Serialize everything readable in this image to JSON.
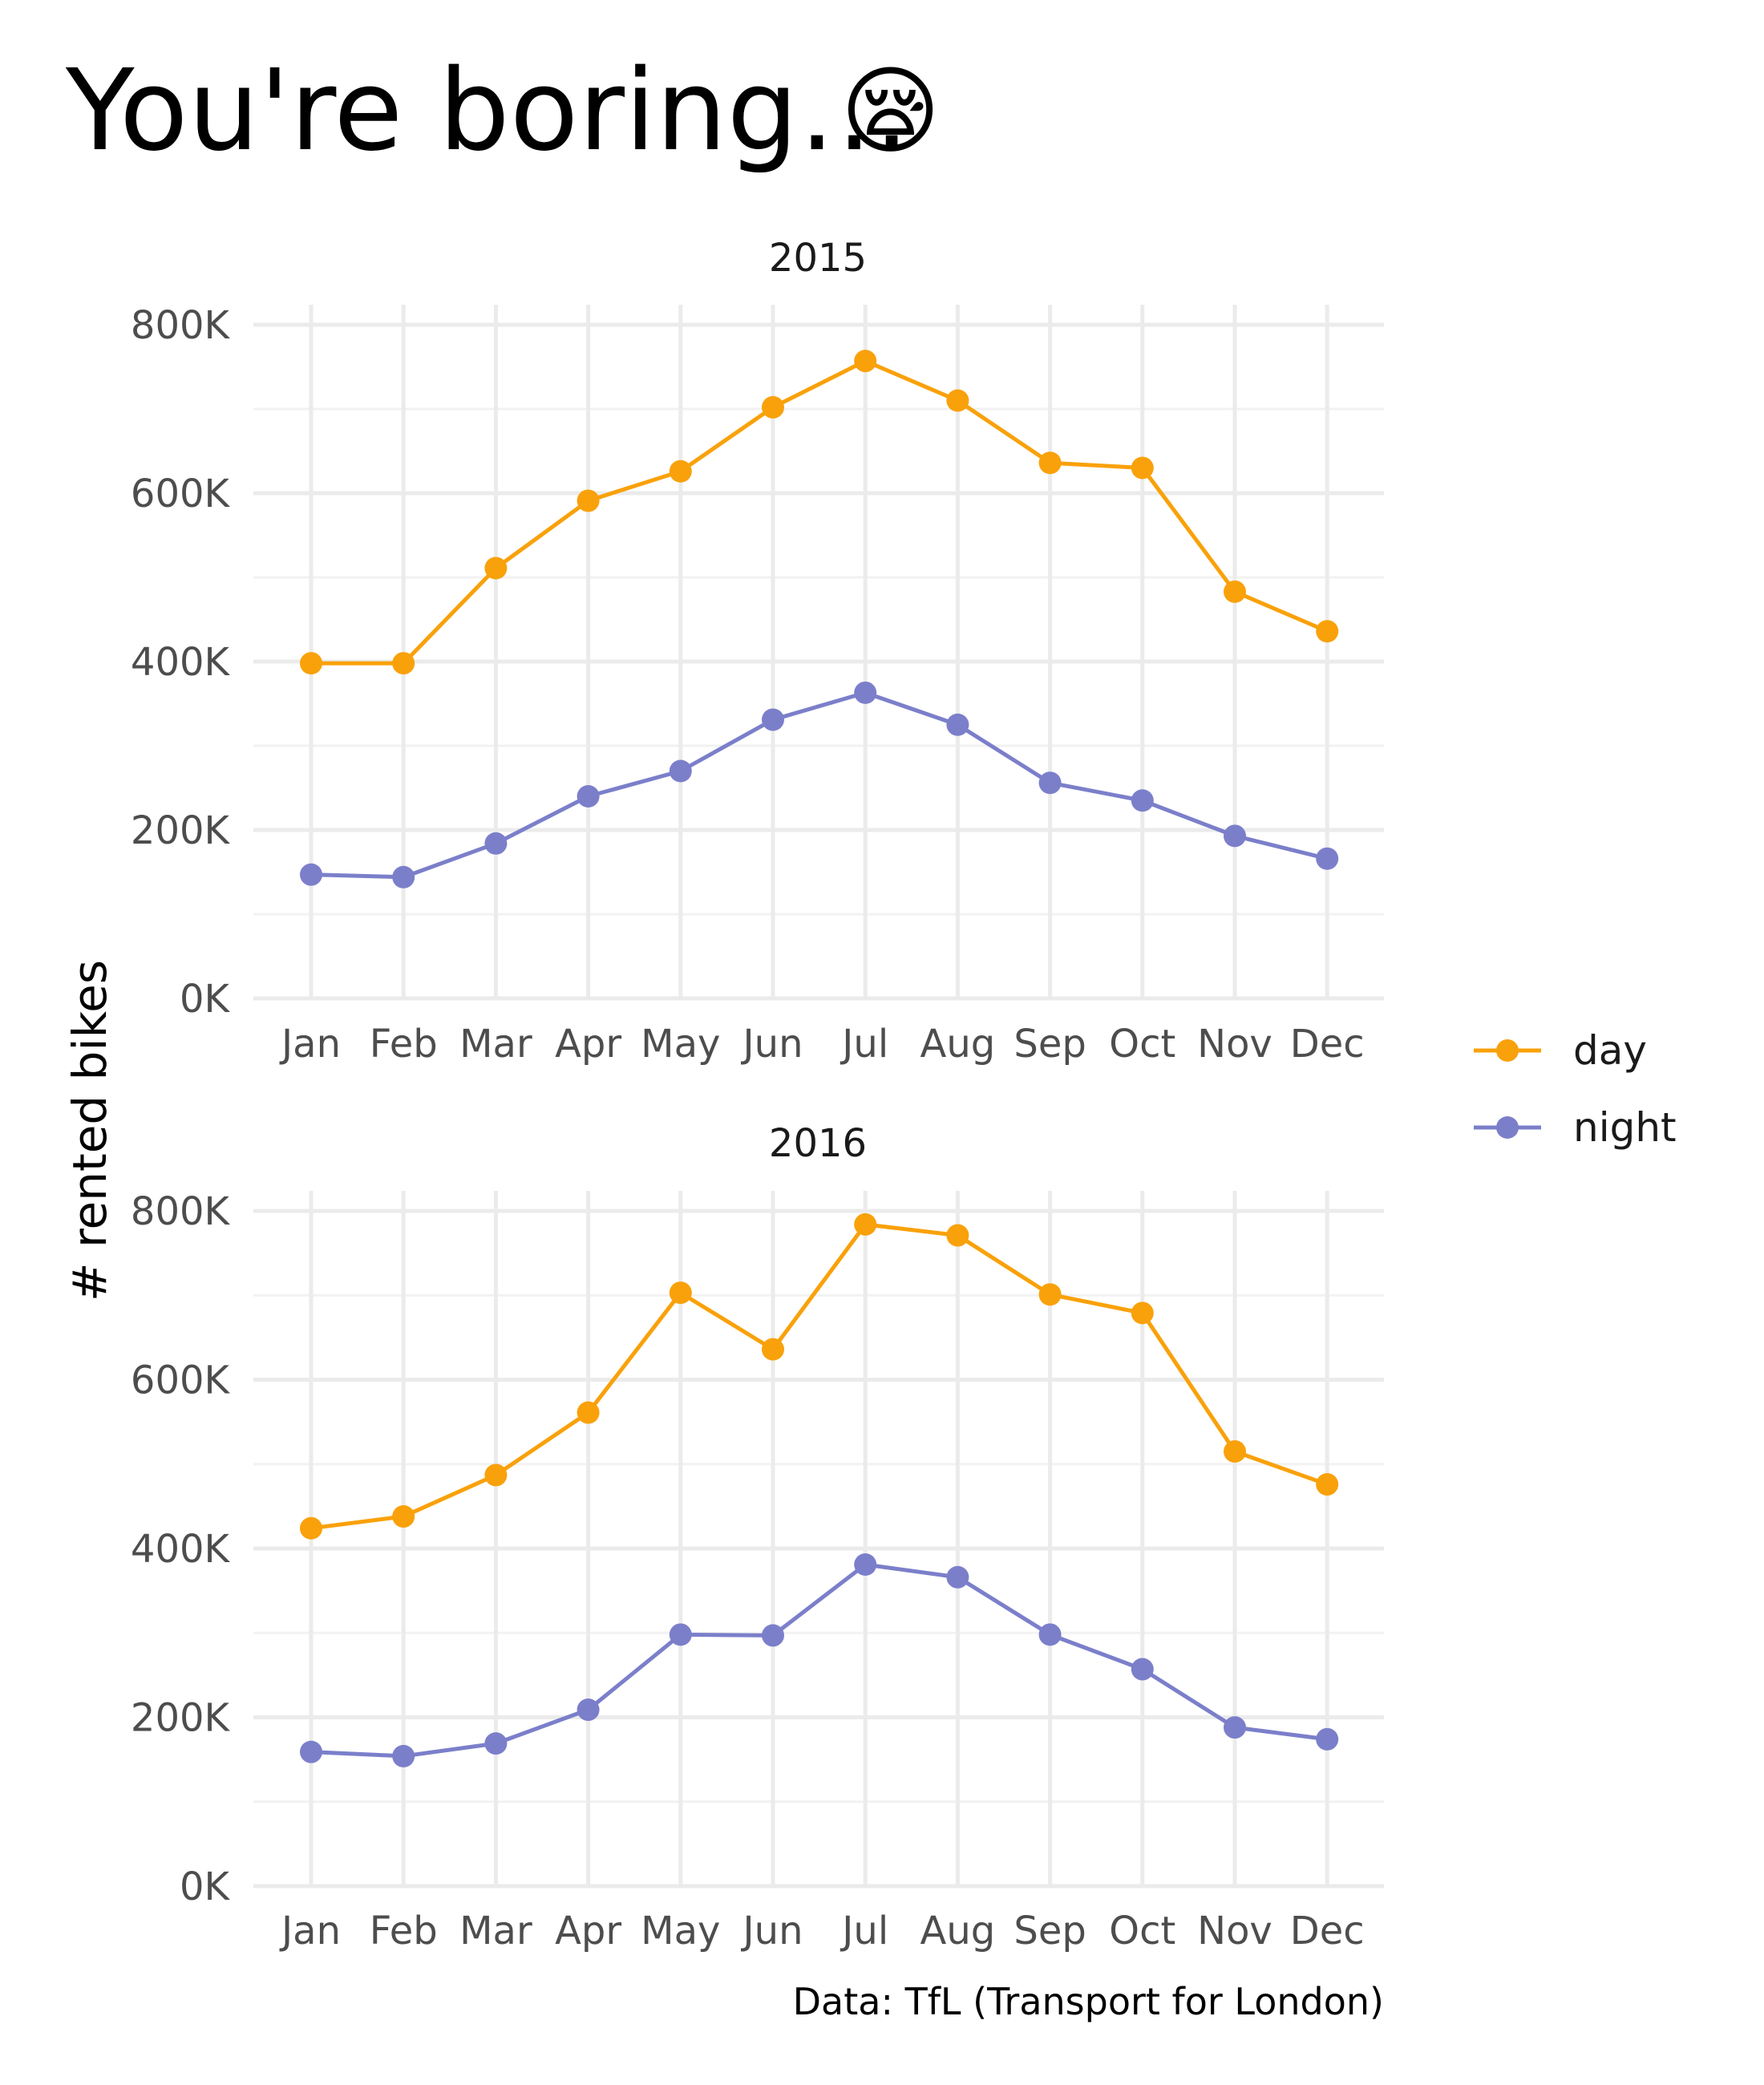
{
  "title": "You're boring…",
  "title_emoji": "😪",
  "caption": "Data: TfL (Transport for London)",
  "ylabel": "# rented bikes",
  "legend": [
    {
      "label": "day",
      "color": "#F9A10A"
    },
    {
      "label": "night",
      "color": "#7B7FCA"
    }
  ],
  "chart_data": [
    {
      "type": "line",
      "title": "2015",
      "xlabel": "",
      "ylabel": "# rented bikes",
      "categories": [
        "Jan",
        "Feb",
        "Mar",
        "Apr",
        "May",
        "Jun",
        "Jul",
        "Aug",
        "Sep",
        "Oct",
        "Nov",
        "Dec"
      ],
      "ylim": [
        0,
        830000
      ],
      "yticks": [
        0,
        200000,
        400000,
        600000,
        800000
      ],
      "ytick_labels": [
        "0K",
        "200K",
        "400K",
        "600K",
        "800K"
      ],
      "series": [
        {
          "name": "day",
          "color": "#F9A10A",
          "values": [
            398000,
            398000,
            511000,
            591000,
            626000,
            702000,
            757000,
            710000,
            636000,
            630000,
            483000,
            436000
          ]
        },
        {
          "name": "night",
          "color": "#7B7FCA",
          "values": [
            147000,
            144000,
            184000,
            240000,
            270000,
            331000,
            363000,
            325000,
            256000,
            235000,
            193000,
            166000
          ]
        }
      ]
    },
    {
      "type": "line",
      "title": "2016",
      "xlabel": "",
      "ylabel": "# rented bikes",
      "categories": [
        "Jan",
        "Feb",
        "Mar",
        "Apr",
        "May",
        "Jun",
        "Jul",
        "Aug",
        "Sep",
        "Oct",
        "Nov",
        "Dec"
      ],
      "ylim": [
        0,
        830000
      ],
      "yticks": [
        0,
        200000,
        400000,
        600000,
        800000
      ],
      "ytick_labels": [
        "0K",
        "200K",
        "400K",
        "600K",
        "800K"
      ],
      "series": [
        {
          "name": "day",
          "color": "#F9A10A",
          "values": [
            424000,
            438000,
            487000,
            561000,
            703000,
            636000,
            784000,
            771000,
            701000,
            679000,
            515000,
            476000
          ]
        },
        {
          "name": "night",
          "color": "#7B7FCA",
          "values": [
            159000,
            154000,
            169000,
            209000,
            298000,
            297000,
            381000,
            366000,
            298000,
            257000,
            188000,
            174000
          ]
        }
      ]
    }
  ]
}
